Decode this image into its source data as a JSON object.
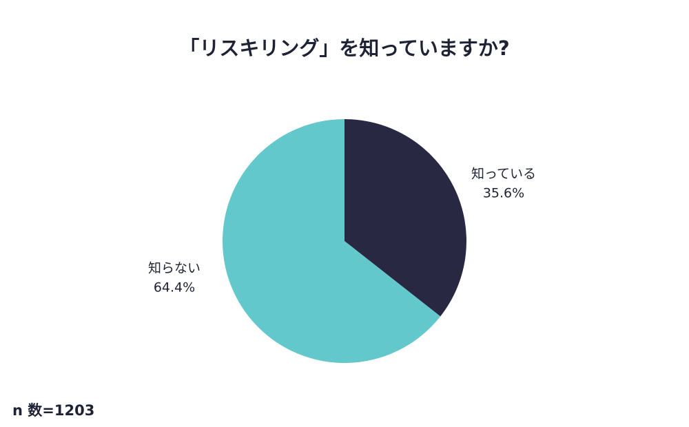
{
  "chart_data": {
    "type": "pie",
    "title": "「リスキリング」を知っていますか?",
    "categories": [
      "知っている",
      "知らない"
    ],
    "values": [
      35.6,
      64.4
    ],
    "value_labels": [
      "35.6%",
      "64.4%"
    ],
    "colors": [
      "#282843",
      "#62c8cc"
    ],
    "note": "n 数=1203"
  }
}
